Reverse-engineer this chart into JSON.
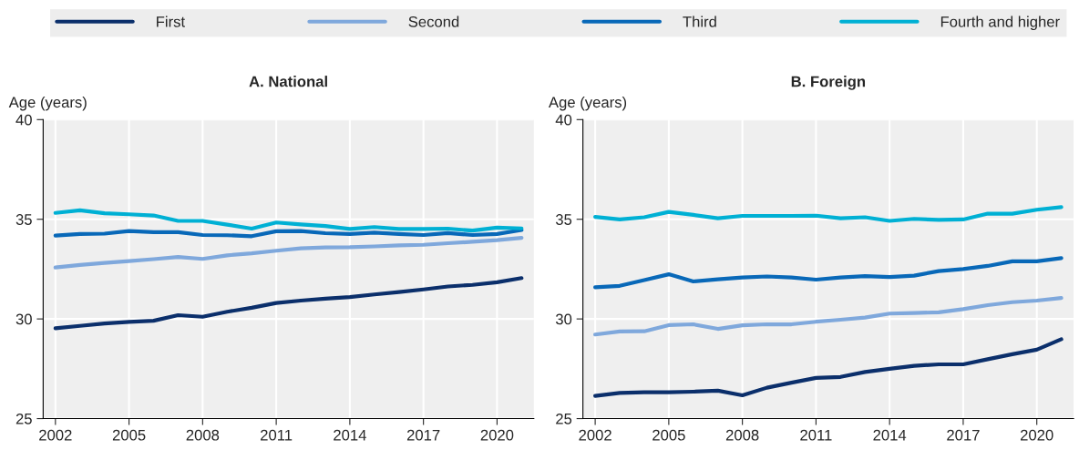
{
  "chart_data": [
    {
      "type": "line",
      "title": "A. National",
      "ylabel": "Age (years)",
      "legend": "top",
      "grid": true,
      "x": [
        2002,
        2003,
        2004,
        2005,
        2006,
        2007,
        2008,
        2009,
        2010,
        2011,
        2012,
        2013,
        2014,
        2015,
        2016,
        2017,
        2018,
        2019,
        2020,
        2021
      ],
      "xlim": [
        2001.5,
        2021.5
      ],
      "xticks": [
        2002,
        2005,
        2008,
        2011,
        2014,
        2017,
        2020
      ],
      "ylim": [
        25,
        40
      ],
      "yticks": [
        25,
        30,
        35,
        40
      ],
      "series": [
        {
          "name": "First",
          "color": "#0b2f6b",
          "values": [
            29.53,
            29.65,
            29.77,
            29.85,
            29.91,
            30.19,
            30.11,
            30.36,
            30.56,
            30.8,
            30.92,
            31.02,
            31.1,
            31.23,
            31.35,
            31.48,
            31.63,
            31.71,
            31.84,
            32.05
          ]
        },
        {
          "name": "Second",
          "color": "#7fa8dc",
          "values": [
            32.58,
            32.71,
            32.81,
            32.9,
            33.0,
            33.11,
            33.01,
            33.19,
            33.29,
            33.42,
            33.54,
            33.59,
            33.6,
            33.64,
            33.69,
            33.72,
            33.8,
            33.87,
            33.95,
            34.07
          ]
        },
        {
          "name": "Third",
          "color": "#0868b8",
          "values": [
            34.18,
            34.26,
            34.28,
            34.41,
            34.35,
            34.35,
            34.21,
            34.2,
            34.15,
            34.4,
            34.41,
            34.3,
            34.26,
            34.33,
            34.26,
            34.21,
            34.31,
            34.21,
            34.26,
            34.46
          ]
        },
        {
          "name": "Fourth and higher",
          "color": "#00b0d4",
          "values": [
            35.32,
            35.45,
            35.3,
            35.25,
            35.19,
            34.92,
            34.92,
            34.73,
            34.53,
            34.84,
            34.74,
            34.66,
            34.51,
            34.61,
            34.51,
            34.51,
            34.53,
            34.43,
            34.58,
            34.54
          ]
        }
      ]
    },
    {
      "type": "line",
      "title": "B. Foreign",
      "ylabel": "Age (years)",
      "grid": true,
      "x": [
        2002,
        2003,
        2004,
        2005,
        2006,
        2007,
        2008,
        2009,
        2010,
        2011,
        2012,
        2013,
        2014,
        2015,
        2016,
        2017,
        2018,
        2019,
        2020,
        2021
      ],
      "xlim": [
        2001.5,
        2021.5
      ],
      "xticks": [
        2002,
        2005,
        2008,
        2011,
        2014,
        2017,
        2020
      ],
      "ylim": [
        25,
        40
      ],
      "yticks": [
        25,
        30,
        35,
        40
      ],
      "series": [
        {
          "color": "#0b2f6b",
          "values": [
            26.14,
            26.29,
            26.32,
            26.32,
            26.35,
            26.4,
            26.17,
            26.55,
            26.8,
            27.04,
            27.09,
            27.34,
            27.5,
            27.65,
            27.72,
            27.72,
            27.98,
            28.23,
            28.46,
            28.98
          ]
        },
        {
          "color": "#7fa8dc",
          "values": [
            29.22,
            29.37,
            29.38,
            29.69,
            29.73,
            29.5,
            29.68,
            29.73,
            29.73,
            29.86,
            29.96,
            30.07,
            30.27,
            30.3,
            30.33,
            30.49,
            30.69,
            30.84,
            30.92,
            31.05
          ]
        },
        {
          "color": "#0868b8",
          "values": [
            31.59,
            31.66,
            31.95,
            32.24,
            31.88,
            31.99,
            32.08,
            32.13,
            32.08,
            31.97,
            32.08,
            32.15,
            32.1,
            32.17,
            32.4,
            32.5,
            32.66,
            32.89,
            32.89,
            33.05
          ]
        },
        {
          "color": "#00b0d4",
          "values": [
            35.12,
            34.99,
            35.1,
            35.37,
            35.22,
            35.05,
            35.17,
            35.17,
            35.17,
            35.18,
            35.05,
            35.1,
            34.92,
            35.02,
            34.97,
            34.99,
            35.28,
            35.28,
            35.48,
            35.61
          ]
        }
      ]
    }
  ]
}
